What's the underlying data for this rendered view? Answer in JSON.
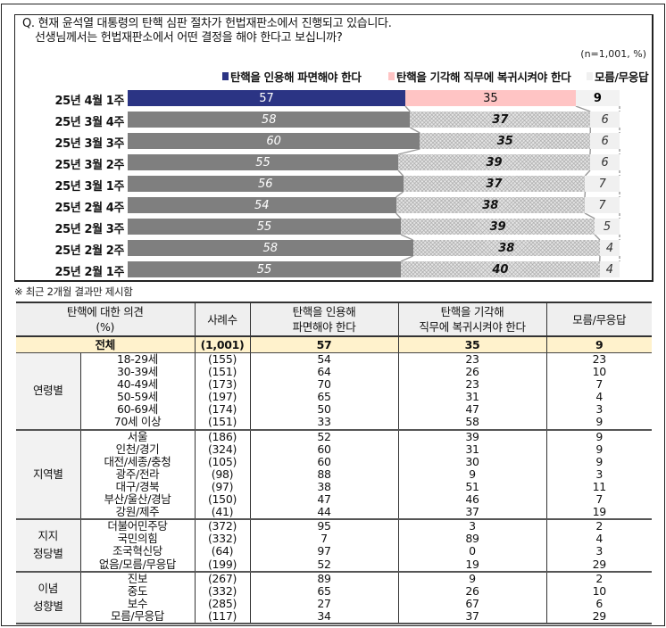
{
  "question": {
    "line1": "Q. 현재 윤석열 대통령의 탄핵 심판 절차가 헌법재판소에서 진행되고 있습니다.",
    "line2": "선생님께서는 헌법재판소에서 어떤 결정을 해야 한다고 보십니까?",
    "sample_note": "(n=1,001, %)"
  },
  "legend": [
    {
      "label": "탄핵을 인용해 파면해야 한다",
      "color": "#2b3484"
    },
    {
      "label": "탄핵을 기각해 직무에 복귀시켜야 한다",
      "color": "#ffc4c4"
    },
    {
      "label": "모름/무응답",
      "color": "#f0f0f0"
    }
  ],
  "chart_data": {
    "type": "bar",
    "orientation": "horizontal-stacked-100",
    "title": "현재 윤석열 대통령의 탄핵 심판 절차가 헌법재판소에서 진행되고 있습니다. 선생님께서는 헌법재판소에서 어떤 결정을 해야 한다고 보십니까?",
    "note": "(n=1,001, %)",
    "categories": [
      "25년 4월 1주",
      "25년 3월 4주",
      "25년 3월 3주",
      "25년 3월 2주",
      "25년 3월 1주",
      "25년 2월 4주",
      "25년 2월 3주",
      "25년 2월 2주",
      "25년 2월 1주"
    ],
    "series": [
      {
        "name": "탄핵을 인용해 파면해야 한다",
        "values": [
          57,
          58,
          60,
          55,
          56,
          54,
          55,
          58,
          55
        ]
      },
      {
        "name": "탄핵을 기각해 직무에 복귀시켜야 한다",
        "values": [
          35,
          37,
          35,
          39,
          37,
          38,
          39,
          38,
          40
        ]
      },
      {
        "name": "모름/무응답",
        "values": [
          9,
          6,
          6,
          6,
          7,
          7,
          5,
          4,
          4
        ]
      }
    ],
    "xlabel": "",
    "ylabel": "",
    "xlim": [
      0,
      100
    ],
    "grid": false,
    "legend_position": "top",
    "highlighted_category": "25년 4월 1주"
  },
  "footnote": "※ 최근 2개월 결과만 제시함",
  "table": {
    "headers": {
      "opinion_line1": "탄핵에 대한 의견",
      "opinion_line2": "(%)",
      "n": "사례수",
      "col1_line1": "탄핵을 인용해",
      "col1_line2": "파면해야 한다",
      "col2_line1": "탄핵을 기각해",
      "col2_line2": "직무에 복귀시켜야 한다",
      "col3": "모름/무응답"
    },
    "total": {
      "label": "전체",
      "n": "(1,001)",
      "v1": "57",
      "v2": "35",
      "v3": "9"
    },
    "groups": [
      {
        "name_line1": "연령별",
        "name_line2": "",
        "rows": [
          {
            "label": "18-29세",
            "n": "(155)",
            "v1": "54",
            "v2": "23",
            "v3": "23"
          },
          {
            "label": "30-39세",
            "n": "(151)",
            "v1": "64",
            "v2": "26",
            "v3": "10"
          },
          {
            "label": "40-49세",
            "n": "(173)",
            "v1": "70",
            "v2": "23",
            "v3": "7"
          },
          {
            "label": "50-59세",
            "n": "(197)",
            "v1": "65",
            "v2": "31",
            "v3": "4"
          },
          {
            "label": "60-69세",
            "n": "(174)",
            "v1": "50",
            "v2": "47",
            "v3": "3"
          },
          {
            "label": "70세 이상",
            "n": "(151)",
            "v1": "33",
            "v2": "58",
            "v3": "9"
          }
        ]
      },
      {
        "name_line1": "지역별",
        "name_line2": "",
        "rows": [
          {
            "label": "서울",
            "n": "(186)",
            "v1": "52",
            "v2": "39",
            "v3": "9"
          },
          {
            "label": "인천/경기",
            "n": "(324)",
            "v1": "60",
            "v2": "31",
            "v3": "9"
          },
          {
            "label": "대전/세종/충청",
            "n": "(105)",
            "v1": "60",
            "v2": "30",
            "v3": "9"
          },
          {
            "label": "광주/전라",
            "n": "(98)",
            "v1": "88",
            "v2": "9",
            "v3": "3"
          },
          {
            "label": "대구/경북",
            "n": "(97)",
            "v1": "38",
            "v2": "51",
            "v3": "11"
          },
          {
            "label": "부산/울산/경남",
            "n": "(150)",
            "v1": "47",
            "v2": "46",
            "v3": "7"
          },
          {
            "label": "강원/제주",
            "n": "(41)",
            "v1": "44",
            "v2": "37",
            "v3": "19"
          }
        ]
      },
      {
        "name_line1": "지지",
        "name_line2": "정당별",
        "rows": [
          {
            "label": "더불어민주당",
            "n": "(372)",
            "v1": "95",
            "v2": "3",
            "v3": "2"
          },
          {
            "label": "국민의힘",
            "n": "(332)",
            "v1": "7",
            "v2": "89",
            "v3": "4"
          },
          {
            "label": "조국혁신당",
            "n": "(64)",
            "v1": "97",
            "v2": "0",
            "v3": "3"
          },
          {
            "label": "없음/모름/무응답",
            "n": "(199)",
            "v1": "52",
            "v2": "19",
            "v3": "29"
          }
        ]
      },
      {
        "name_line1": "이념",
        "name_line2": "성향별",
        "rows": [
          {
            "label": "진보",
            "n": "(267)",
            "v1": "89",
            "v2": "9",
            "v3": "2"
          },
          {
            "label": "중도",
            "n": "(332)",
            "v1": "65",
            "v2": "26",
            "v3": "10"
          },
          {
            "label": "보수",
            "n": "(285)",
            "v1": "27",
            "v2": "67",
            "v3": "6"
          },
          {
            "label": "모름/무응답",
            "n": "(117)",
            "v1": "34",
            "v2": "37",
            "v3": "29"
          }
        ]
      }
    ]
  }
}
